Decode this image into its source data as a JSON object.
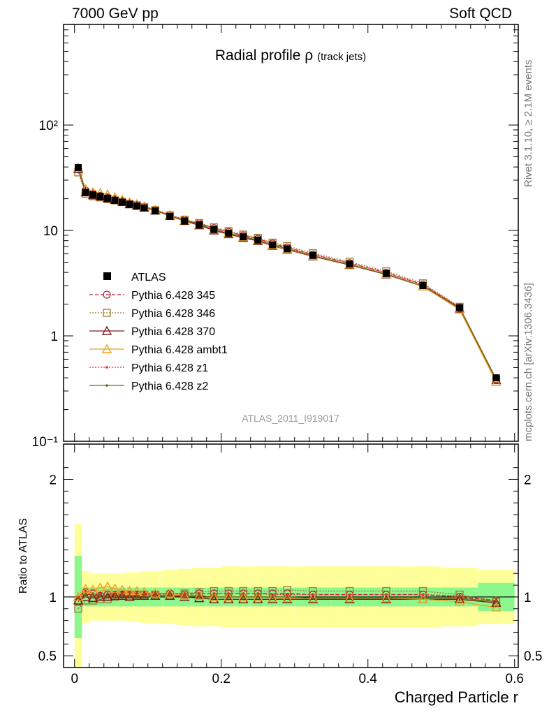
{
  "header": {
    "left": "7000 GeV pp",
    "right": "Soft QCD",
    "side_top": "Rivet 3.1.10, ≥ 2.1M events",
    "side_bottom": "mcplots.cern.ch [arXiv:1306.3436]"
  },
  "chart_data": {
    "type": "line",
    "title": "Radial profile",
    "title_symbol": "ρ",
    "title_suffix": "(track jets)",
    "analysis_label": "ATLAS_2011_I919017",
    "xlabel": "Charged Particle r",
    "ylabel": "",
    "ratio_ylabel": "Ratio to ATLAS",
    "xlim": [
      -0.015,
      0.605
    ],
    "ylim": [
      0.1,
      900
    ],
    "yscale": "log",
    "ratio_ylim": [
      0.4,
      2.3
    ],
    "x_ticks": [
      "0",
      "0.2",
      "0.4",
      "0.6"
    ],
    "y_ticks": [
      {
        "label": "10⁻¹",
        "value": 0.1
      },
      {
        "label": "1",
        "value": 1
      },
      {
        "label": "10",
        "value": 10
      },
      {
        "label": "10²",
        "value": 100
      }
    ],
    "ratio_ticks": [
      {
        "label": "0.5",
        "value": 0.5
      },
      {
        "label": "1",
        "value": 1
      },
      {
        "label": "2",
        "value": 2
      }
    ],
    "legend_position": "middle-left",
    "bin_edges": [
      0,
      0.01,
      0.02,
      0.03,
      0.04,
      0.05,
      0.06,
      0.07,
      0.08,
      0.09,
      0.1,
      0.12,
      0.14,
      0.16,
      0.18,
      0.2,
      0.22,
      0.24,
      0.26,
      0.28,
      0.3,
      0.35,
      0.4,
      0.45,
      0.5,
      0.55,
      0.6
    ],
    "x": [
      0.005,
      0.015,
      0.025,
      0.035,
      0.045,
      0.055,
      0.065,
      0.075,
      0.085,
      0.095,
      0.11,
      0.13,
      0.15,
      0.17,
      0.19,
      0.21,
      0.23,
      0.25,
      0.27,
      0.29,
      0.325,
      0.375,
      0.425,
      0.475,
      0.525,
      0.575
    ],
    "data": {
      "name": "ATLAS",
      "values": [
        39.5,
        23.0,
        21.8,
        21.0,
        20.2,
        19.3,
        18.5,
        17.7,
        17.0,
        16.3,
        15.3,
        13.6,
        12.3,
        11.3,
        10.2,
        9.4,
        8.7,
        8.1,
        7.3,
        6.7,
        5.8,
        4.8,
        3.9,
        3.0,
        1.85,
        0.4
      ],
      "band_inner": [
        0.35,
        0.08,
        0.08,
        0.08,
        0.08,
        0.08,
        0.08,
        0.08,
        0.08,
        0.08,
        0.08,
        0.08,
        0.08,
        0.08,
        0.08,
        0.08,
        0.08,
        0.08,
        0.08,
        0.08,
        0.08,
        0.08,
        0.08,
        0.08,
        0.08,
        0.12
      ],
      "band_outer": [
        0.62,
        0.22,
        0.2,
        0.2,
        0.2,
        0.2,
        0.2,
        0.21,
        0.21,
        0.22,
        0.22,
        0.23,
        0.24,
        0.25,
        0.25,
        0.26,
        0.26,
        0.26,
        0.26,
        0.26,
        0.26,
        0.26,
        0.26,
        0.26,
        0.25,
        0.23
      ]
    },
    "series": [
      {
        "name": "Pythia 6.428 345",
        "color": "#b22234",
        "marker": "circle",
        "dash": "5,3",
        "ratio": [
          0.96,
          1.04,
          1.03,
          1.01,
          1.02,
          1.02,
          1.02,
          1.02,
          1.02,
          1.02,
          1.02,
          1.03,
          1.02,
          1.03,
          1.03,
          1.03,
          1.03,
          1.03,
          1.03,
          1.03,
          1.02,
          1.02,
          1.02,
          1.02,
          1.0,
          0.97
        ]
      },
      {
        "name": "Pythia 6.428 346",
        "color": "#a07830",
        "marker": "square",
        "dash": "2,2",
        "ratio": [
          0.9,
          0.97,
          0.97,
          0.98,
          0.98,
          1.0,
          1.01,
          1.01,
          1.02,
          1.02,
          1.02,
          1.02,
          1.03,
          1.04,
          1.05,
          1.05,
          1.05,
          1.05,
          1.05,
          1.06,
          1.05,
          1.05,
          1.05,
          1.05,
          1.02,
          0.96
        ]
      },
      {
        "name": "Pythia 6.428 370",
        "color": "#7a1a1a",
        "marker": "triangle",
        "dash": "",
        "ratio": [
          0.97,
          1.0,
          0.99,
          1.0,
          1.0,
          1.01,
          1.01,
          1.0,
          1.01,
          1.01,
          1.01,
          1.01,
          1.0,
          0.99,
          0.98,
          0.98,
          0.98,
          0.98,
          0.98,
          0.98,
          0.98,
          0.98,
          0.98,
          0.98,
          0.98,
          0.95
        ]
      },
      {
        "name": "Pythia 6.428 ambt1",
        "color": "#f0a020",
        "marker": "triangle",
        "dash": "",
        "ratio": [
          1.0,
          1.07,
          1.06,
          1.08,
          1.09,
          1.07,
          1.06,
          1.05,
          1.05,
          1.04,
          1.03,
          1.03,
          1.01,
          1.01,
          1.0,
          1.0,
          1.0,
          1.0,
          0.99,
          0.99,
          0.99,
          0.99,
          0.99,
          0.98,
          0.96,
          0.91
        ]
      },
      {
        "name": "Pythia 6.428 z1",
        "color": "#e8262c",
        "marker": "dot",
        "dash": "2,2",
        "ratio": [
          1.0,
          1.05,
          1.03,
          1.03,
          1.03,
          1.03,
          1.03,
          1.03,
          1.03,
          1.03,
          1.03,
          1.03,
          1.03,
          1.03,
          1.03,
          1.03,
          1.03,
          1.03,
          1.02,
          1.02,
          1.02,
          1.02,
          1.02,
          1.02,
          1.01,
          0.97
        ]
      },
      {
        "name": "Pythia 6.428 z2",
        "color": "#6b6b10",
        "marker": "dot",
        "dash": "",
        "ratio": [
          0.99,
          1.02,
          1.02,
          1.01,
          1.01,
          1.01,
          1.01,
          1.01,
          1.01,
          1.01,
          1.01,
          1.01,
          1.01,
          1.01,
          1.0,
          1.0,
          1.0,
          1.0,
          1.0,
          1.0,
          0.99,
          0.99,
          0.99,
          0.99,
          0.99,
          0.96
        ]
      }
    ],
    "colors": {
      "band_inner": "#8cf78c",
      "band_outer": "#ffff99",
      "data": "#000000"
    }
  }
}
